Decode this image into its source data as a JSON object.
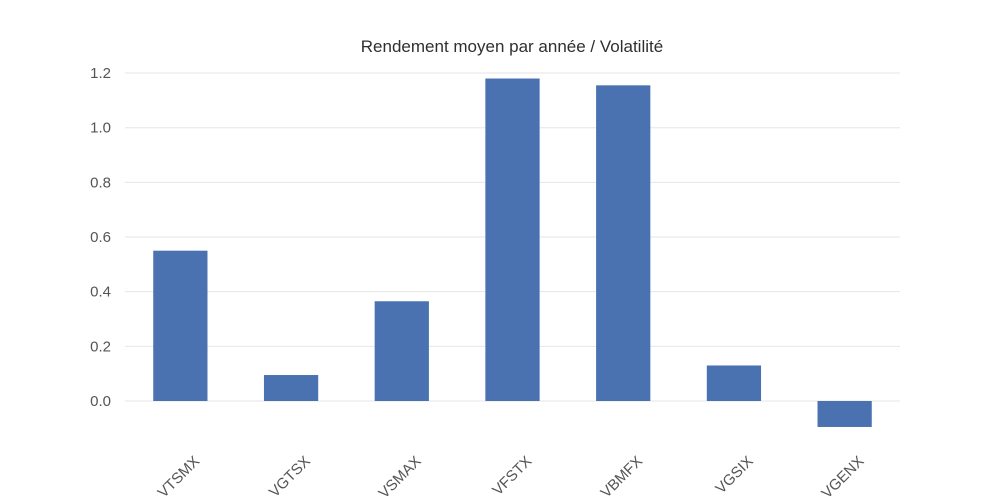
{
  "chart_data": {
    "type": "bar",
    "title": "Rendement moyen par année / Volatilité",
    "xlabel": "",
    "ylabel": "",
    "categories": [
      "VTSMX",
      "VGTSX",
      "VSMAX",
      "VFSTX",
      "VBMFX",
      "VGSIX",
      "VGENX"
    ],
    "values": [
      0.55,
      0.095,
      0.365,
      1.18,
      1.155,
      0.13,
      -0.095
    ],
    "ylim": [
      -0.1,
      1.2
    ],
    "yticks": [
      0.0,
      0.2,
      0.4,
      0.6,
      0.8,
      1.0,
      1.2
    ],
    "ytick_labels": [
      "0.0",
      "0.2",
      "0.4",
      "0.6",
      "0.8",
      "1.0",
      "1.2"
    ],
    "grid": true,
    "legend": "none",
    "bar_color": "#4a72b0",
    "grid_color": "#e6e6e6"
  }
}
